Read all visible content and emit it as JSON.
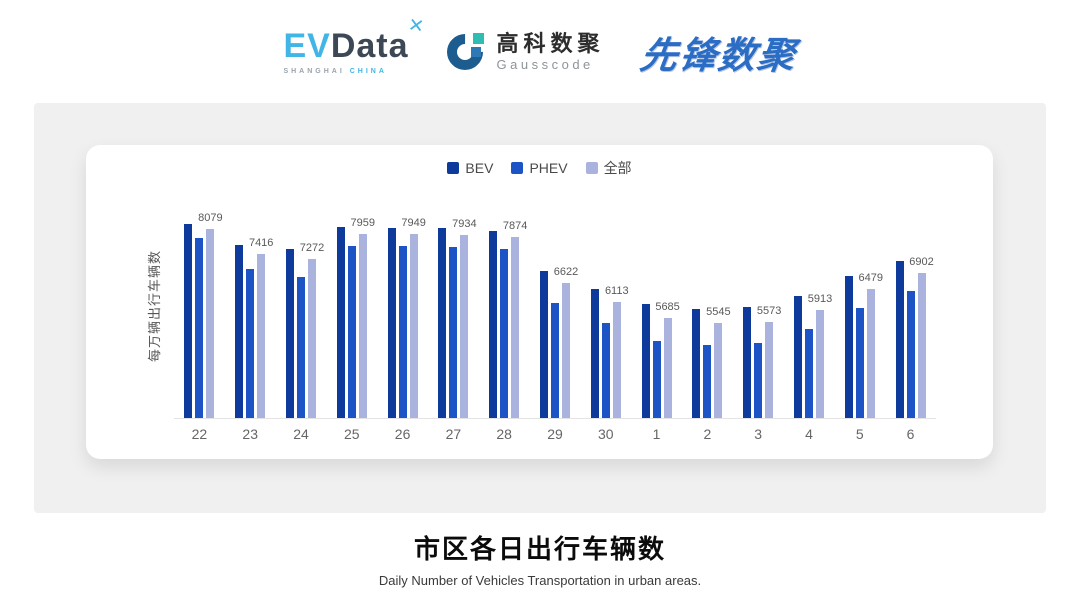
{
  "header": {
    "evdata": {
      "ev": "EV",
      "data": "Data",
      "mark": "✕",
      "sub1": "SHANGHAI",
      "sub2": "CHINA"
    },
    "gausscode": {
      "cn": "高科数聚",
      "en": "Gausscode"
    },
    "xianfeng": {
      "cn": "先锋数聚"
    }
  },
  "colors": {
    "bev": "#0d3a9b",
    "phev": "#1c53c5",
    "all": "#a9b3de",
    "evdata_cyan": "#41b6e6",
    "evdata_dark": "#3d4856",
    "gausscode_navy": "#1d5c8e",
    "gausscode_teal": "#2fbdb3",
    "xianfeng_blue": "#2b6cc4",
    "panel_gray": "#f0f0f0"
  },
  "chart_data": {
    "type": "bar",
    "title": "",
    "xlabel": "",
    "ylabel": "每万辆出行车辆数",
    "categories": [
      "22",
      "23",
      "24",
      "25",
      "26",
      "27",
      "28",
      "29",
      "30",
      "1",
      "2",
      "3",
      "4",
      "5",
      "6"
    ],
    "series": [
      {
        "name": "BEV",
        "color": "#0d3a9b",
        "values": [
          8220,
          7660,
          7540,
          8140,
          8120,
          8120,
          8040,
          6950,
          6480,
          6080,
          5930,
          5980,
          6290,
          6820,
          7230
        ],
        "note": "estimated from bar heights (not labeled)"
      },
      {
        "name": "PHEV",
        "color": "#1c53c5",
        "values": [
          7850,
          7010,
          6790,
          7620,
          7620,
          7600,
          7550,
          6100,
          5560,
          5070,
          4970,
          5020,
          5390,
          5970,
          6410
        ],
        "note": "estimated from bar heights (not labeled)"
      },
      {
        "name": "全部",
        "color": "#a9b3de",
        "values": [
          8079,
          7416,
          7272,
          7959,
          7949,
          7934,
          7874,
          6622,
          6113,
          5685,
          5545,
          5573,
          5913,
          6479,
          6902
        ],
        "note": "values shown as data labels on chart"
      }
    ],
    "data_labels": [
      8079,
      7416,
      7272,
      7959,
      7949,
      7934,
      7874,
      6622,
      6113,
      5685,
      5545,
      5573,
      5913,
      6479,
      6902
    ],
    "data_labels_series": "全部",
    "ylim": [
      3000,
      9000
    ],
    "grid": false,
    "legend_position": "top"
  },
  "footer": {
    "title": "市区各日出行车辆数",
    "subtitle": "Daily Number of Vehicles Transportation in urban areas."
  }
}
